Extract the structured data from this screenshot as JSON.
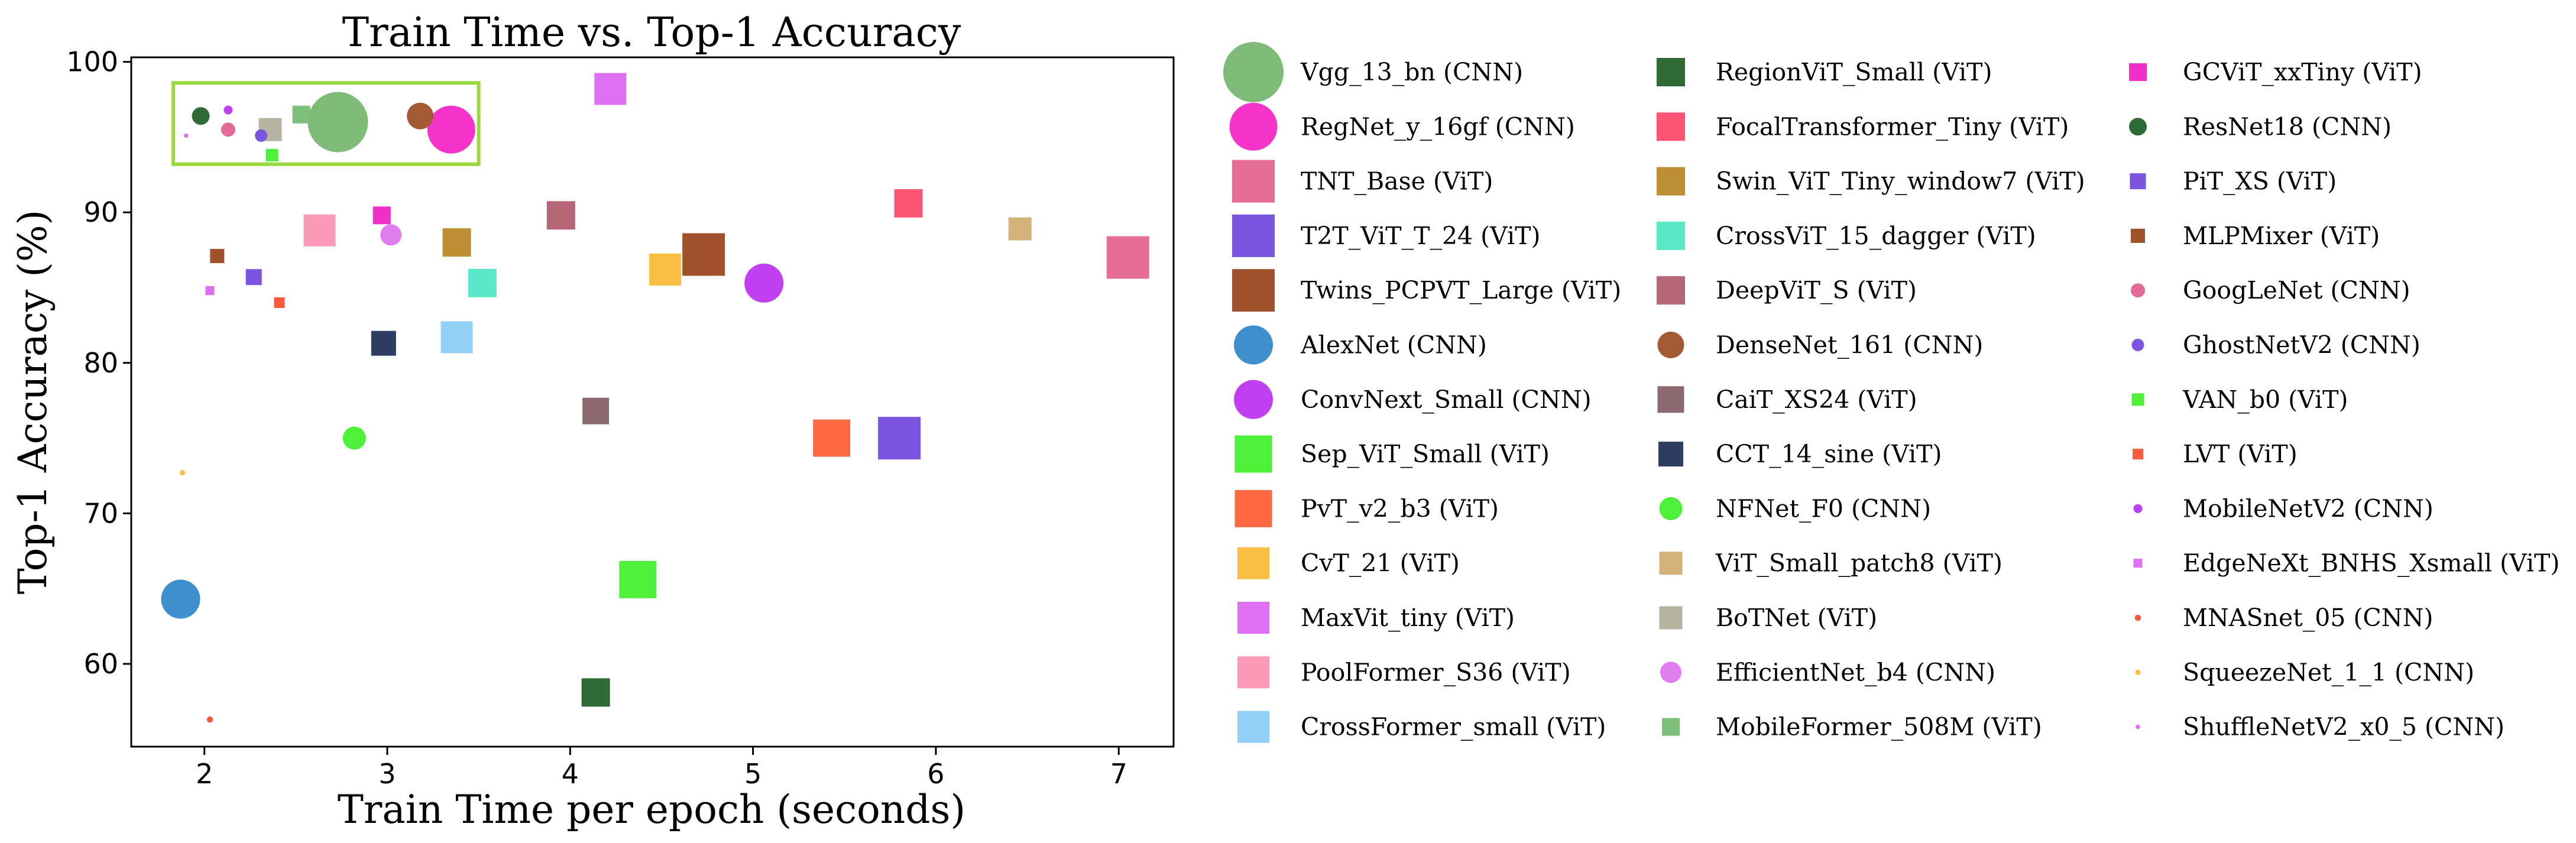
{
  "chart_data": {
    "type": "scatter",
    "title": "Train Time vs. Top-1 Accuracy",
    "xlabel": "Train Time per epoch (seconds)",
    "ylabel": "Top-1 Accuracy (%)",
    "xlim": [
      1.6,
      7.3
    ],
    "ylim": [
      54.5,
      100.3
    ],
    "xticks": [
      2,
      3,
      4,
      5,
      6,
      7
    ],
    "yticks": [
      60,
      70,
      80,
      90,
      100
    ],
    "grid": false,
    "highlight_box": {
      "x": [
        1.83,
        3.5
      ],
      "y": [
        93.2,
        98.6
      ],
      "color": "#9ad93e"
    },
    "legend_position": "right",
    "series": [
      {
        "name": "Vgg_13_bn (CNN)",
        "marker": "circle",
        "color": "#7dbb77",
        "size": 3.4,
        "x": 2.73,
        "y": 96.0
      },
      {
        "name": "RegNet_y_16gf (CNN)",
        "marker": "circle",
        "color": "#f533c9",
        "size": 2.7,
        "x": 3.35,
        "y": 95.5
      },
      {
        "name": "TNT_Base (ViT)",
        "marker": "square",
        "color": "#e56d96",
        "size": 2.4,
        "x": 7.05,
        "y": 87.0
      },
      {
        "name": "T2T_ViT_T_24 (ViT)",
        "marker": "square",
        "color": "#7b54e0",
        "size": 2.4,
        "x": 5.8,
        "y": 75.0
      },
      {
        "name": "Twins_PCPVT_Large (ViT)",
        "marker": "square",
        "color": "#a0522d",
        "size": 2.4,
        "x": 4.73,
        "y": 87.2
      },
      {
        "name": "AlexNet (CNN)",
        "marker": "circle",
        "color": "#3e8fcb",
        "size": 2.2,
        "x": 1.87,
        "y": 64.3
      },
      {
        "name": "ConvNext_Small (CNN)",
        "marker": "circle",
        "color": "#c03ff0",
        "size": 2.2,
        "x": 5.06,
        "y": 85.3
      },
      {
        "name": "Sep_ViT_Small (ViT)",
        "marker": "square",
        "color": "#4ef03a",
        "size": 2.1,
        "x": 4.37,
        "y": 65.6
      },
      {
        "name": "PvT_v2_b3 (ViT)",
        "marker": "square",
        "color": "#ff6a45",
        "size": 2.1,
        "x": 5.43,
        "y": 75.0
      },
      {
        "name": "CvT_21 (ViT)",
        "marker": "square",
        "color": "#fbbd3f",
        "size": 1.8,
        "x": 4.52,
        "y": 86.2
      },
      {
        "name": "MaxVit_tiny (ViT)",
        "marker": "square",
        "color": "#de70f2",
        "size": 1.8,
        "x": 4.22,
        "y": 98.2
      },
      {
        "name": "PoolFormer_S36 (ViT)",
        "marker": "square",
        "color": "#fa9ab6",
        "size": 1.8,
        "x": 2.63,
        "y": 88.8
      },
      {
        "name": "CrossFormer_small (ViT)",
        "marker": "square",
        "color": "#93d0f5",
        "size": 1.8,
        "x": 3.38,
        "y": 81.7
      },
      {
        "name": "RegionViT_Small (ViT)",
        "marker": "square",
        "color": "#2f6b37",
        "size": 1.6,
        "x": 4.14,
        "y": 58.1
      },
      {
        "name": "FocalTransformer_Tiny (ViT)",
        "marker": "square",
        "color": "#fb5576",
        "size": 1.6,
        "x": 5.85,
        "y": 90.6
      },
      {
        "name": "Swin_ViT_Tiny_window7 (ViT)",
        "marker": "square",
        "color": "#bb8f32",
        "size": 1.6,
        "x": 3.38,
        "y": 88.0
      },
      {
        "name": "CrossViT_15_dagger (ViT)",
        "marker": "square",
        "color": "#5ae8c8",
        "size": 1.6,
        "x": 3.52,
        "y": 85.3
      },
      {
        "name": "DeepViT_S (ViT)",
        "marker": "square",
        "color": "#b76676",
        "size": 1.6,
        "x": 3.95,
        "y": 89.8
      },
      {
        "name": "DenseNet_161 (CNN)",
        "marker": "circle",
        "color": "#a35a35",
        "size": 1.5,
        "x": 3.18,
        "y": 96.4
      },
      {
        "name": "CaiT_XS24 (ViT)",
        "marker": "square",
        "color": "#8b6b70",
        "size": 1.5,
        "x": 4.14,
        "y": 76.8
      },
      {
        "name": "CCT_14_sine (ViT)",
        "marker": "square",
        "color": "#2e3d62",
        "size": 1.4,
        "x": 2.98,
        "y": 81.3
      },
      {
        "name": "NFNet_F0 (CNN)",
        "marker": "circle",
        "color": "#4ef03a",
        "size": 1.3,
        "x": 2.82,
        "y": 75.0
      },
      {
        "name": "ViT_Small_patch8 (ViT)",
        "marker": "square",
        "color": "#d5b27b",
        "size": 1.3,
        "x": 6.46,
        "y": 88.9
      },
      {
        "name": "BoTNet (ViT)",
        "marker": "square",
        "color": "#b6b3a1",
        "size": 1.3,
        "x": 2.36,
        "y": 95.5
      },
      {
        "name": "EfficientNet_b4 (CNN)",
        "marker": "circle",
        "color": "#e07bf0",
        "size": 1.2,
        "x": 3.02,
        "y": 88.5
      },
      {
        "name": "MobileFormer_508M (ViT)",
        "marker": "square",
        "color": "#7cc07a",
        "size": 1.0,
        "x": 2.53,
        "y": 96.5
      },
      {
        "name": "GCViT_xxTiny (ViT)",
        "marker": "square",
        "color": "#f030c8",
        "size": 1.0,
        "x": 2.97,
        "y": 89.8
      },
      {
        "name": "ResNet18 (CNN)",
        "marker": "circle",
        "color": "#2f6b37",
        "size": 1.0,
        "x": 1.98,
        "y": 96.4
      },
      {
        "name": "PiT_XS (ViT)",
        "marker": "square",
        "color": "#7b54e0",
        "size": 0.9,
        "x": 2.27,
        "y": 85.7
      },
      {
        "name": "MLPMixer (ViT)",
        "marker": "square",
        "color": "#a0522d",
        "size": 0.8,
        "x": 2.07,
        "y": 87.1
      },
      {
        "name": "GoogLeNet (CNN)",
        "marker": "circle",
        "color": "#e06b96",
        "size": 0.8,
        "x": 2.13,
        "y": 95.5
      },
      {
        "name": "GhostNetV2 (CNN)",
        "marker": "circle",
        "color": "#7b54e0",
        "size": 0.7,
        "x": 2.31,
        "y": 95.1
      },
      {
        "name": "VAN_b0 (ViT)",
        "marker": "square",
        "color": "#4ef03a",
        "size": 0.7,
        "x": 2.37,
        "y": 93.8
      },
      {
        "name": "LVT (ViT)",
        "marker": "square",
        "color": "#f55b3a",
        "size": 0.6,
        "x": 2.41,
        "y": 84.0
      },
      {
        "name": "MobileNetV2 (CNN)",
        "marker": "circle",
        "color": "#c03ff0",
        "size": 0.5,
        "x": 2.13,
        "y": 96.8
      },
      {
        "name": "EdgeNeXt_BNHS_Xsmall (ViT)",
        "marker": "square",
        "color": "#de70f2",
        "size": 0.5,
        "x": 2.03,
        "y": 84.8
      },
      {
        "name": "MNASnet_05 (CNN)",
        "marker": "circle",
        "color": "#f55b3a",
        "size": 0.35,
        "x": 2.03,
        "y": 56.3
      },
      {
        "name": "SqueezeNet_1_1 (CNN)",
        "marker": "circle",
        "color": "#fbbd3f",
        "size": 0.3,
        "x": 1.88,
        "y": 72.7
      },
      {
        "name": "ShuffleNetV2_x0_5 (CNN)",
        "marker": "circle",
        "color": "#de70f2",
        "size": 0.25,
        "x": 1.9,
        "y": 95.1
      }
    ]
  }
}
